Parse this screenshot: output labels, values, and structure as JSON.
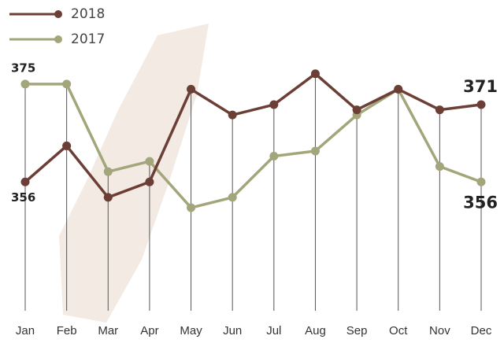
{
  "chart_data": {
    "type": "line",
    "categories": [
      "Jan",
      "Feb",
      "Mar",
      "Apr",
      "May",
      "Jun",
      "Jul",
      "Aug",
      "Sep",
      "Oct",
      "Nov",
      "Dec"
    ],
    "series": [
      {
        "name": "2018",
        "color": "#6b3e36",
        "values": [
          356,
          363,
          353,
          356,
          374,
          369,
          371,
          377,
          370,
          374,
          370,
          371
        ]
      },
      {
        "name": "2017",
        "color": "#a3a67a",
        "values": [
          375,
          375,
          358,
          360,
          351,
          353,
          361,
          362,
          369,
          374,
          359,
          356
        ]
      }
    ],
    "ylim": [
      331,
      382
    ]
  }
}
